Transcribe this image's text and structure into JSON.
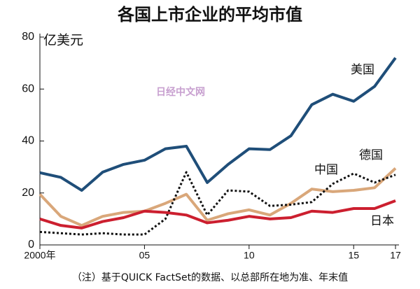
{
  "chart_data": {
    "type": "line",
    "title": "各国上市企业的平均市值",
    "y_label": "亿美元",
    "note": "（注）基于QUICK FactSet的数据、以总部所在地为准、年末值",
    "watermark": "日经中文网",
    "x": [
      2000,
      2001,
      2002,
      2003,
      2004,
      2005,
      2006,
      2007,
      2008,
      2009,
      2010,
      2011,
      2012,
      2013,
      2014,
      2015,
      2016,
      2017
    ],
    "xlim": [
      2000,
      2017
    ],
    "xticks": [
      {
        "value": 2000,
        "label": "2000年"
      },
      {
        "value": 2005,
        "label": "05"
      },
      {
        "value": 2010,
        "label": "10"
      },
      {
        "value": 2015,
        "label": "15"
      },
      {
        "value": 2017,
        "label": "17"
      }
    ],
    "ylim": [
      0,
      80
    ],
    "yticks": [
      0,
      20,
      40,
      60,
      80
    ],
    "series": [
      {
        "name": "美国",
        "color": "#1f4e79",
        "values": [
          27.8,
          26,
          21,
          28,
          31,
          32.6,
          37,
          38,
          24,
          31,
          37,
          36.7,
          42,
          54,
          58,
          55.3,
          61,
          72
        ]
      },
      {
        "name": "德国",
        "color": "#d9a77a",
        "values": [
          19.5,
          11,
          7.5,
          11,
          12.5,
          13,
          16,
          19.5,
          9.5,
          12,
          13.5,
          11.5,
          16,
          21.5,
          20.5,
          21,
          22,
          29.5
        ]
      },
      {
        "name": "中国",
        "color": "#111111",
        "dash": "dotted",
        "values": [
          5,
          4.5,
          4,
          4.5,
          4,
          4,
          10,
          28,
          11.5,
          21,
          20.5,
          15,
          15.5,
          16.5,
          23.5,
          27.5,
          24,
          27
        ]
      },
      {
        "name": "日本",
        "color": "#cc1f2f",
        "values": [
          10,
          7.5,
          6.5,
          9,
          10.5,
          13,
          12.5,
          11.5,
          8.5,
          9.5,
          11,
          10,
          10.5,
          13,
          12.5,
          14,
          14,
          17
        ]
      }
    ]
  }
}
